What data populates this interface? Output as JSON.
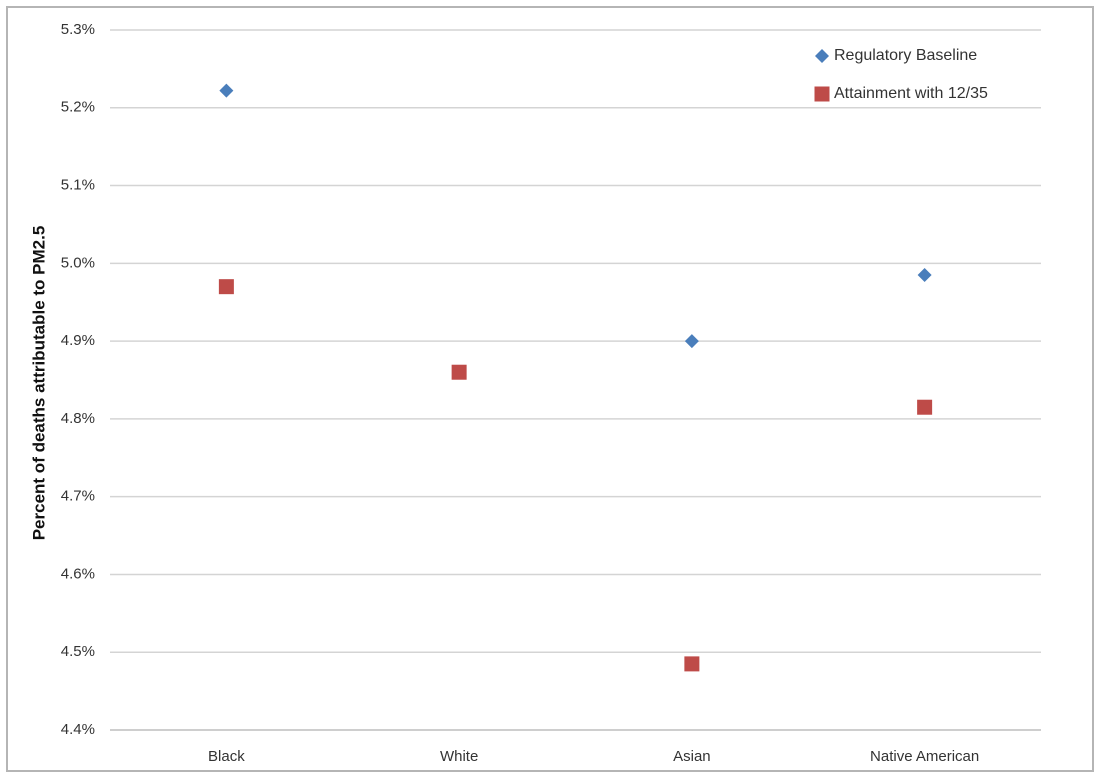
{
  "chart_data": {
    "type": "scatter",
    "title": "",
    "xlabel": "",
    "ylabel": "Percent of deaths attributable to PM2.5",
    "categories": [
      "Black",
      "White",
      "Asian",
      "Native American"
    ],
    "ylim": [
      0.044,
      0.053
    ],
    "yticks": [
      "4.4%",
      "4.5%",
      "4.6%",
      "4.7%",
      "4.8%",
      "4.9%",
      "5.0%",
      "5.1%",
      "5.2%",
      "5.3%"
    ],
    "ytick_values": [
      0.044,
      0.045,
      0.046,
      0.047,
      0.048,
      0.049,
      0.05,
      0.051,
      0.052,
      0.053
    ],
    "grid": true,
    "legend_position": "top-right",
    "series": [
      {
        "name": "Regulatory Baseline",
        "marker": "diamond",
        "color": "#4a7ebb",
        "values": [
          0.05222,
          null,
          0.049,
          0.04985
        ]
      },
      {
        "name": "Attainment with 12/35",
        "marker": "square",
        "color": "#be4b48",
        "values": [
          0.0497,
          0.0486,
          0.04485,
          0.04815
        ]
      }
    ]
  }
}
